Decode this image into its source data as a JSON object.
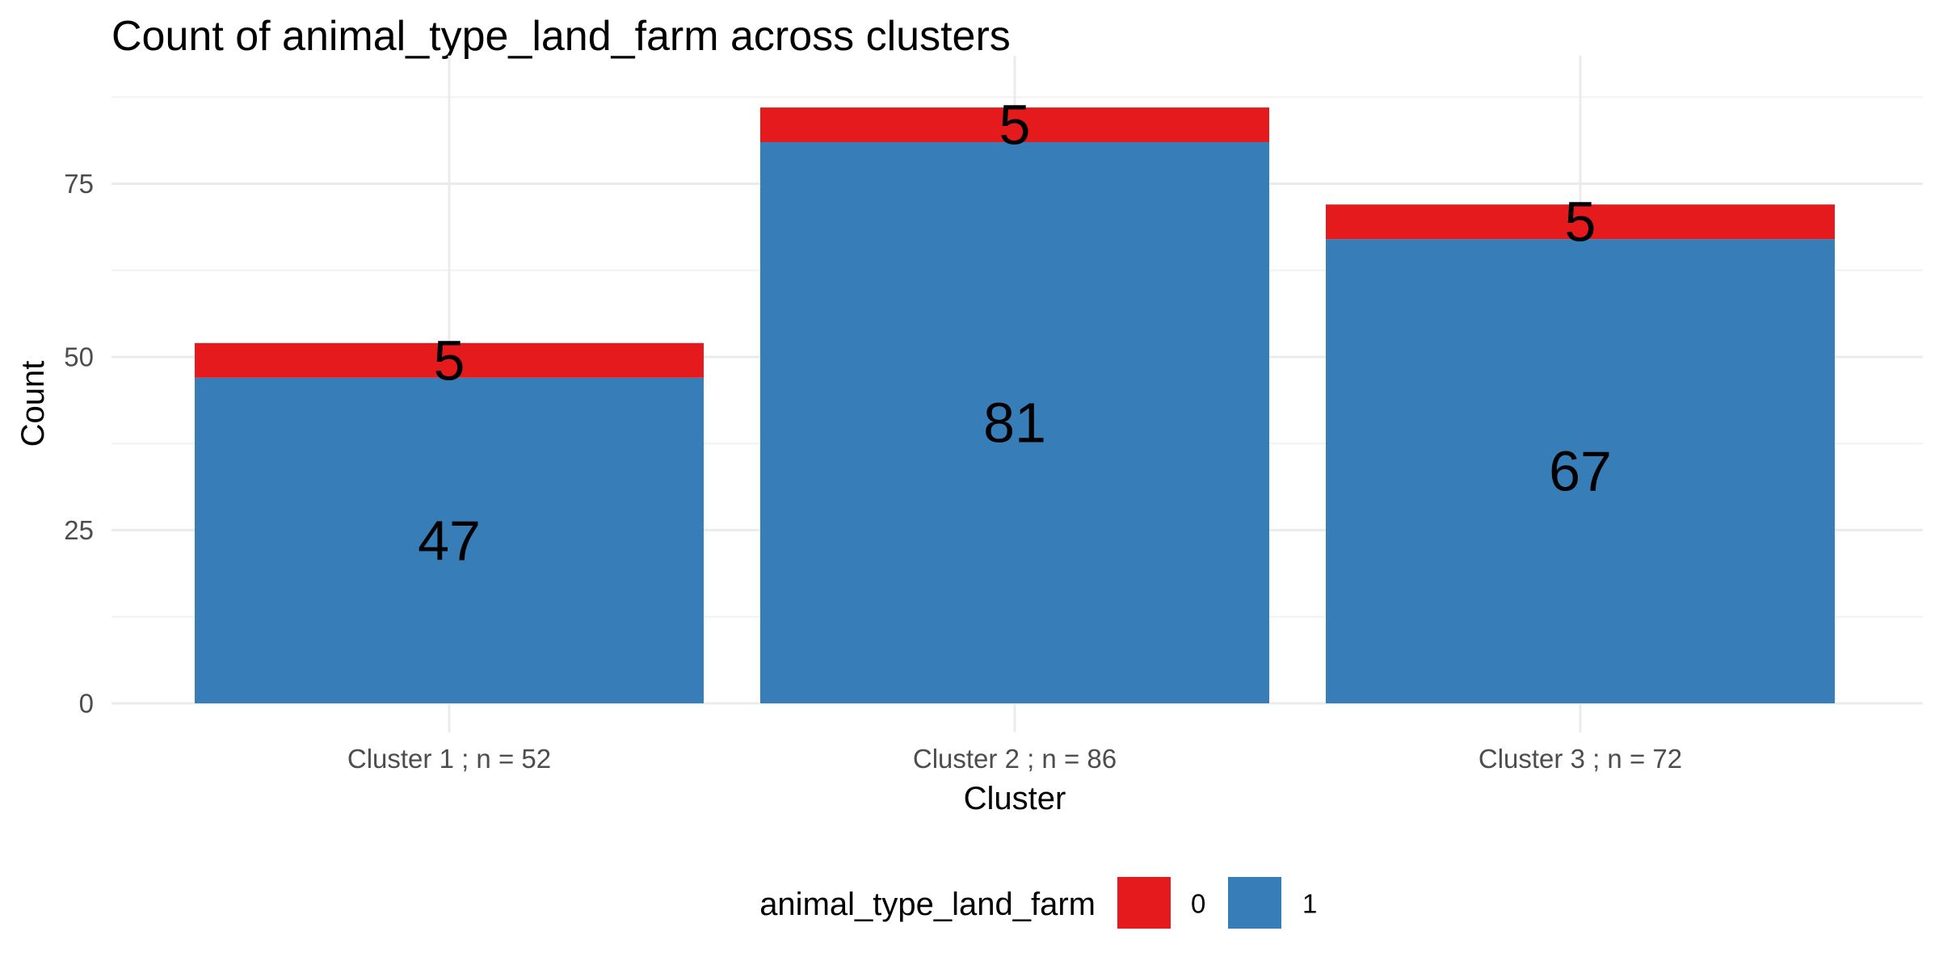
{
  "chart_data": {
    "type": "bar",
    "stacked": true,
    "title": "Count of animal_type_land_farm across clusters",
    "xlabel": "Cluster",
    "ylabel": "Count",
    "categories": [
      "Cluster 1 ; n = 52",
      "Cluster 2 ; n = 86",
      "Cluster 3 ; n = 72"
    ],
    "series": [
      {
        "name": "0",
        "color": "#e41a1c",
        "values": [
          5,
          5,
          5
        ]
      },
      {
        "name": "1",
        "color": "#377eb8",
        "values": [
          47,
          81,
          67
        ]
      }
    ],
    "stack_order_bottom_to_top": [
      "1",
      "0"
    ],
    "ylim": [
      0,
      90
    ],
    "yticks": [
      0,
      25,
      50,
      75
    ],
    "ytick_labels": [
      "0",
      "25",
      "50",
      "75"
    ],
    "grid": true,
    "legend": {
      "title": "animal_type_land_farm",
      "position": "bottom",
      "entries": [
        "0",
        "1"
      ]
    }
  }
}
